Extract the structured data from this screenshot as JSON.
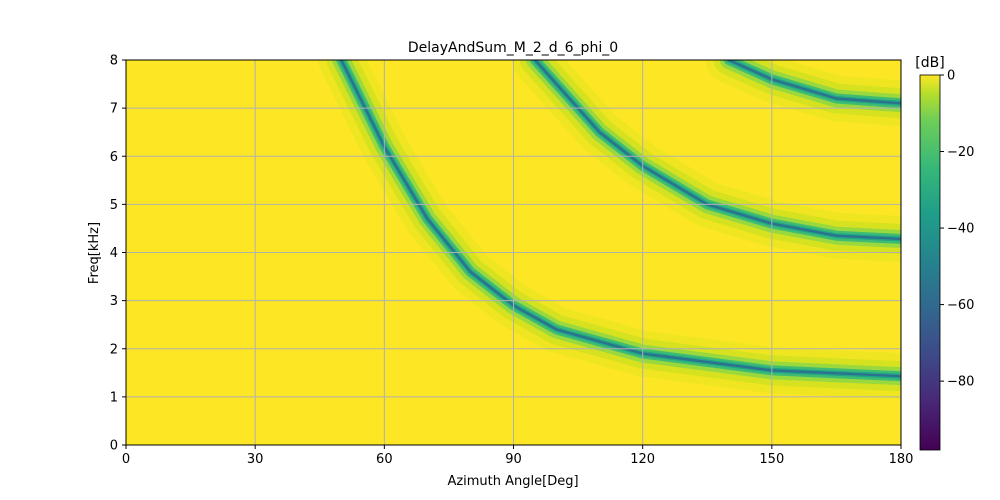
{
  "chart_data": {
    "type": "heatmap",
    "title": "DelayAndSum_M_2_d_6_phi_0",
    "xlabel": "Azimuth Angle[Deg]",
    "ylabel": "Freq[kHz]",
    "xlim": [
      0,
      180
    ],
    "ylim": [
      0,
      8
    ],
    "x_ticks": [
      0,
      30,
      60,
      90,
      120,
      150,
      180
    ],
    "y_ticks": [
      0,
      1,
      2,
      3,
      4,
      5,
      6,
      7,
      8
    ],
    "grid": true,
    "colormap": "viridis",
    "colorbar": {
      "label": "[dB]",
      "range": [
        -98,
        0
      ],
      "ticks": [
        0,
        -20,
        -40,
        -60,
        -80
      ],
      "tick_labels": [
        "0",
        "−20",
        "−40",
        "−60",
        "−80"
      ]
    },
    "null_curves": [
      {
        "order": 1,
        "points": [
          [
            50,
            8.0
          ],
          [
            60,
            6.2
          ],
          [
            70,
            4.7
          ],
          [
            80,
            3.6
          ],
          [
            90,
            2.9
          ],
          [
            100,
            2.4
          ],
          [
            120,
            1.9
          ],
          [
            150,
            1.55
          ],
          [
            180,
            1.43
          ]
        ]
      },
      {
        "order": 2,
        "points": [
          [
            95,
            8.0
          ],
          [
            110,
            6.5
          ],
          [
            120,
            5.8
          ],
          [
            135,
            5.0
          ],
          [
            150,
            4.6
          ],
          [
            165,
            4.35
          ],
          [
            180,
            4.28
          ]
        ]
      },
      {
        "order": 3,
        "points": [
          [
            140,
            8.0
          ],
          [
            150,
            7.6
          ],
          [
            165,
            7.2
          ],
          [
            180,
            7.1
          ]
        ]
      }
    ]
  }
}
